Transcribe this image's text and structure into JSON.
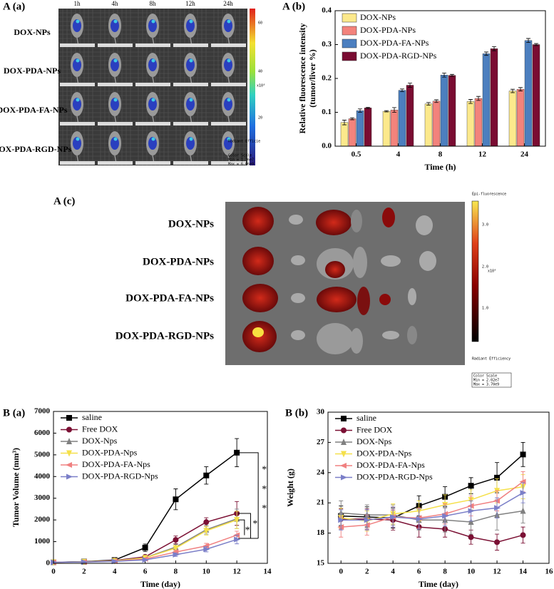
{
  "mouse_images": {
    "title": "A (a)",
    "columns": [
      "1h",
      "4h",
      "8h",
      "12h",
      "24h"
    ],
    "rows": [
      "DOX-NPs",
      "DOX-PDA-NPs",
      "DOX-PDA-FA-NPs",
      "DOX-PDA-RGD-NPs"
    ],
    "colorbar_ticks": [
      "60",
      "40",
      "20"
    ],
    "colorbar_unit": "x10⁸",
    "colorbar_texts": [
      "Radiant Efficie",
      "Color Scale",
      "Min = 1.36e7",
      "Max = 6.06e9"
    ]
  },
  "organ_images": {
    "title": "A (c)",
    "rows": [
      "DOX-NPs",
      "DOX-PDA-NPs",
      "DOX-PDA-FA-NPs",
      "DOX-PDA-RGD-NPs"
    ],
    "colorbar_title": "Epi-fluorescence",
    "colorbar_ticks": [
      "3.0",
      "2.0",
      "1.0"
    ],
    "colorbar_unit": "x10⁹",
    "colorbar_texts": [
      "Radiant Efficiency",
      "Color Scale",
      "Min = 2.02e7",
      "Max = 3.70e9"
    ]
  },
  "chart_data": [
    {
      "type": "bar",
      "title": "A (b)",
      "ylabel": [
        "Relative fluorescence intensity",
        "(tumor/liver %)"
      ],
      "xlabel": "Time (h)",
      "categories": [
        "0.5",
        "4",
        "8",
        "12",
        "24"
      ],
      "ylim": [
        0,
        0.4
      ],
      "yticks": [
        {
          "value": 0,
          "label": "0.0"
        },
        0.1,
        0.2,
        0.3,
        0.4
      ],
      "legend": "upper-left",
      "series": [
        {
          "name": "DOX-NPs",
          "color": "#fce98c",
          "values": [
            0.07,
            0.103,
            0.125,
            0.132,
            0.163
          ],
          "errors": [
            0.007,
            0.002,
            0.004,
            0.006,
            0.005
          ]
        },
        {
          "name": "DOX-PDA-NPs",
          "color": "#f3837c",
          "values": [
            0.081,
            0.107,
            0.133,
            0.141,
            0.168
          ],
          "errors": [
            0.003,
            0.007,
            0.004,
            0.006,
            0.005
          ]
        },
        {
          "name": "DOX-PDA-FA-NPs",
          "color": "#4c7fbf",
          "values": [
            0.105,
            0.165,
            0.21,
            0.273,
            0.312
          ],
          "errors": [
            0.005,
            0.004,
            0.006,
            0.005,
            0.006
          ]
        },
        {
          "name": "DOX-PDA-RGD-NPs",
          "color": "#7a0c32",
          "values": [
            0.113,
            0.18,
            0.209,
            0.288,
            0.3
          ],
          "errors": [
            0.002,
            0.006,
            0.003,
            0.006,
            0.003
          ]
        }
      ]
    },
    {
      "type": "line",
      "title": "B (a)",
      "ylabel": "Tumor Volume (mm³)",
      "xlabel": "Time (day)",
      "x": [
        0,
        2,
        4,
        6,
        8,
        10,
        12
      ],
      "xlim": [
        0,
        14
      ],
      "xticks": [
        0,
        2,
        4,
        6,
        8,
        10,
        12,
        14
      ],
      "ylim": [
        0,
        7000
      ],
      "yticks": [
        0,
        1000,
        2000,
        3000,
        4000,
        5000,
        6000,
        7000
      ],
      "legend": "upper-left",
      "annotations": [
        "*",
        "*",
        "*",
        "*",
        "*"
      ],
      "series": [
        {
          "name": "saline",
          "color": "#000000",
          "marker": "square",
          "values": [
            50,
            80,
            150,
            720,
            2950,
            4050,
            5100
          ],
          "errors": [
            0,
            20,
            40,
            170,
            480,
            400,
            650
          ]
        },
        {
          "name": "Free DOX",
          "color": "#7b1034",
          "marker": "circle",
          "values": [
            50,
            70,
            130,
            300,
            1080,
            1900,
            2300
          ],
          "errors": [
            0,
            20,
            30,
            60,
            180,
            200,
            550
          ]
        },
        {
          "name": "DOX-Nps",
          "color": "#808080",
          "marker": "triangle-up",
          "values": [
            50,
            70,
            120,
            260,
            750,
            1550,
            2050
          ],
          "errors": [
            0,
            20,
            30,
            50,
            120,
            200,
            450
          ]
        },
        {
          "name": "DOX-PDA-Nps",
          "color": "#f5e04a",
          "marker": "triangle-down",
          "values": [
            50,
            70,
            110,
            250,
            700,
            1500,
            2000
          ],
          "errors": [
            0,
            20,
            30,
            50,
            120,
            200,
            400
          ]
        },
        {
          "name": "DOX-PDA-FA-Nps",
          "color": "#f08080",
          "marker": "triangle-left",
          "values": [
            50,
            60,
            100,
            200,
            520,
            800,
            1300
          ],
          "errors": [
            0,
            10,
            20,
            40,
            80,
            120,
            180
          ]
        },
        {
          "name": "DOX-PDA-RGD-Nps",
          "color": "#7b7fc8",
          "marker": "triangle-right",
          "values": [
            50,
            60,
            90,
            160,
            400,
            650,
            1100
          ],
          "errors": [
            0,
            10,
            20,
            30,
            80,
            120,
            200
          ]
        }
      ]
    },
    {
      "type": "line",
      "title": "B (b)",
      "ylabel": "Weight (g)",
      "xlabel": "Time (day)",
      "x": [
        0,
        2,
        4,
        6,
        8,
        10,
        12,
        14
      ],
      "xlim": [
        -1,
        16
      ],
      "xticks": [
        0,
        2,
        4,
        6,
        8,
        10,
        12,
        14,
        16
      ],
      "ylim": [
        15,
        30
      ],
      "yticks": [
        15,
        18,
        21,
        24,
        27,
        30
      ],
      "legend": "upper-left",
      "series": [
        {
          "name": "saline",
          "color": "#000000",
          "marker": "square",
          "values": [
            19.7,
            19.6,
            19.5,
            20.7,
            21.6,
            22.7,
            23.5,
            25.8
          ],
          "errors": [
            1,
            1,
            1,
            1,
            1,
            0.8,
            1.5,
            1.2
          ]
        },
        {
          "name": "Free DOX",
          "color": "#7b1034",
          "marker": "circle",
          "values": [
            19.4,
            19.4,
            19.3,
            18.6,
            18.4,
            17.6,
            17.1,
            17.8
          ],
          "errors": [
            1,
            1,
            1,
            1,
            0.8,
            0.7,
            0.8,
            0.8
          ]
        },
        {
          "name": "DOX-Nps",
          "color": "#808080",
          "marker": "triangle-up",
          "values": [
            20,
            19.8,
            19.8,
            19.3,
            19.3,
            19.1,
            19.8,
            20.2
          ],
          "errors": [
            1.2,
            1,
            1,
            1,
            1.2,
            1.2,
            1.5,
            1.2
          ]
        },
        {
          "name": "DOX-PDA-Nps",
          "color": "#f5e04a",
          "marker": "triangle-down",
          "values": [
            19.5,
            19.2,
            19.9,
            20.2,
            20.8,
            21.3,
            22.2,
            22.6
          ],
          "errors": [
            1,
            1,
            1,
            1,
            1,
            1,
            1.2,
            1.2
          ]
        },
        {
          "name": "DOX-PDA-FA-Nps",
          "color": "#f08080",
          "marker": "triangle-left",
          "values": [
            18.6,
            18.8,
            19.6,
            19.5,
            19.9,
            20.7,
            21.2,
            23.1
          ],
          "errors": [
            1,
            1,
            1,
            1,
            1,
            1,
            1,
            1
          ]
        },
        {
          "name": "DOX-PDA-RGD-Nps",
          "color": "#7b7fc8",
          "marker": "triangle-right",
          "values": [
            19.3,
            19.3,
            19.6,
            19.4,
            19.7,
            20.2,
            20.5,
            22
          ],
          "errors": [
            1,
            1,
            1,
            1,
            1,
            1,
            1,
            1
          ]
        }
      ]
    }
  ]
}
